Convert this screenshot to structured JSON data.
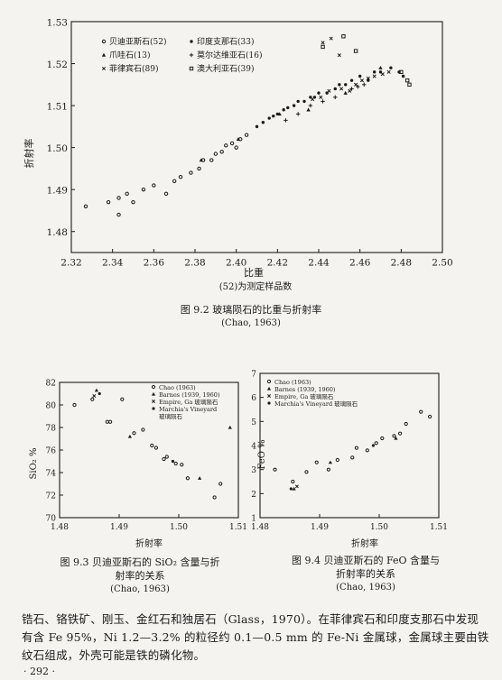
{
  "figure_9_2": {
    "caption": "图 9.2  玻璃陨石的比重与折射率",
    "source": "(Chao, 1963)",
    "xlabel": "比重",
    "xlabel_note": "(52)为测定样品数",
    "ylabel": "折射率",
    "legend": [
      {
        "marker": "circle",
        "label": "贝迪亚斯石(52)"
      },
      {
        "marker": "dot",
        "label": "印度支那石(33)"
      },
      {
        "marker": "triangle",
        "label": "爪哇石(13)"
      },
      {
        "marker": "plus",
        "label": "莫尔达维亚石(16)"
      },
      {
        "marker": "x",
        "label": "菲律宾石(89)"
      },
      {
        "marker": "square",
        "label": "澳大利亚石(39)"
      }
    ]
  },
  "figure_9_3": {
    "caption_line1": "图 9.3  贝迪亚斯石的 SiO₂ 含量与折",
    "caption_line2": "射率的关系",
    "source": "(Chao, 1963)",
    "xlabel": "折射率",
    "ylabel": "SiO₂ %",
    "legend": [
      {
        "marker": "circle",
        "label": "Chao (1963)"
      },
      {
        "marker": "triangle",
        "label": "Barnes (1939, 1960)"
      },
      {
        "marker": "x",
        "label": "Empire, Ga 玻璃陨石"
      },
      {
        "marker": "dot",
        "label": "Marchia's Vineyard"
      },
      {
        "marker": "none",
        "label": "玻璃陨石"
      }
    ]
  },
  "figure_9_4": {
    "caption_line1": "图 9.4  贝迪亚斯石的 FeO 含量与",
    "caption_line2": "折射率的关系",
    "source": "(Chao, 1963)",
    "xlabel": "折射率",
    "ylabel": "FeO %",
    "legend": [
      {
        "marker": "circle",
        "label": "Chao (1963)"
      },
      {
        "marker": "triangle",
        "label": "Barnes (1939, 1960)"
      },
      {
        "marker": "x",
        "label": "Empire, Ga 玻璃陨石"
      },
      {
        "marker": "dot",
        "label": "Marchia's Vineyard 玻璃陨石"
      }
    ]
  },
  "body_text": {
    "line1": "锆石、铬铁矿、刚玉、金红石和独居石（Glass，1970）。在菲律宾石和印度支那石中发现",
    "line2": "有含 Fe 95%，Ni 1.2—3.2% 的粒径约 0.1—0.5 mm 的 Fe-Ni 金属球，金属球主要由铁",
    "line3": "纹石组成，外壳可能是铁的磷化物。"
  },
  "page_number": "· 292 ·",
  "chart_data": [
    {
      "type": "scatter",
      "title": "",
      "xlabel": "比重",
      "ylabel": "折射率",
      "xlim": [
        2.32,
        2.5
      ],
      "ylim": [
        1.475,
        1.53
      ],
      "xticks": [
        2.32,
        2.34,
        2.36,
        2.38,
        2.4,
        2.42,
        2.44,
        2.46,
        2.48,
        2.5
      ],
      "xtick_labels": [
        "2.32",
        "2.34",
        "2.36",
        "2.38",
        "2.40",
        "2.42",
        "2.44",
        "2.46",
        "2.48",
        "2.50"
      ],
      "yticks": [
        1.48,
        1.49,
        1.5,
        1.51,
        1.52,
        1.53
      ],
      "ytick_labels": [
        "1.48",
        "1.49",
        "1.50",
        "1.51",
        "1.52",
        "1.53"
      ],
      "series": [
        {
          "name": "贝迪亚斯石(52)",
          "marker": "circle",
          "points": [
            [
              2.327,
              1.486
            ],
            [
              2.338,
              1.487
            ],
            [
              2.343,
              1.488
            ],
            [
              2.347,
              1.489
            ],
            [
              2.35,
              1.487
            ],
            [
              2.355,
              1.49
            ],
            [
              2.36,
              1.491
            ],
            [
              2.366,
              1.489
            ],
            [
              2.37,
              1.492
            ],
            [
              2.373,
              1.493
            ],
            [
              2.378,
              1.494
            ],
            [
              2.382,
              1.495
            ],
            [
              2.384,
              1.497
            ],
            [
              2.388,
              1.497
            ],
            [
              2.39,
              1.4985
            ],
            [
              2.393,
              1.499
            ],
            [
              2.395,
              1.5005
            ],
            [
              2.398,
              1.501
            ],
            [
              2.4,
              1.5
            ],
            [
              2.402,
              1.502
            ],
            [
              2.405,
              1.503
            ],
            [
              2.343,
              1.484
            ]
          ]
        },
        {
          "name": "印度支那石(33)",
          "marker": "dot",
          "points": [
            [
              2.41,
              1.505
            ],
            [
              2.413,
              1.506
            ],
            [
              2.416,
              1.507
            ],
            [
              2.418,
              1.5075
            ],
            [
              2.42,
              1.508
            ],
            [
              2.423,
              1.509
            ],
            [
              2.425,
              1.5095
            ],
            [
              2.428,
              1.51
            ],
            [
              2.43,
              1.511
            ],
            [
              2.433,
              1.511
            ],
            [
              2.436,
              1.512
            ],
            [
              2.438,
              1.512
            ],
            [
              2.44,
              1.513
            ],
            [
              2.444,
              1.513
            ],
            [
              2.448,
              1.514
            ],
            [
              2.45,
              1.515
            ],
            [
              2.453,
              1.515
            ],
            [
              2.456,
              1.516
            ],
            [
              2.46,
              1.517
            ],
            [
              2.464,
              1.516
            ],
            [
              2.467,
              1.518
            ],
            [
              2.47,
              1.518
            ],
            [
              2.475,
              1.519
            ],
            [
              2.479,
              1.518
            ],
            [
              2.481,
              1.517
            ]
          ]
        },
        {
          "name": "爪哇石(13)",
          "marker": "triangle",
          "points": [
            [
              2.383,
              1.497
            ],
            [
              2.401,
              1.502
            ],
            [
              2.421,
              1.508
            ],
            [
              2.435,
              1.509
            ],
            [
              2.453,
              1.513
            ],
            [
              2.47,
              1.519
            ]
          ]
        },
        {
          "name": "莫尔达维亚石(16)",
          "marker": "plus",
          "points": [
            [
              2.424,
              1.5065
            ],
            [
              2.43,
              1.508
            ],
            [
              2.436,
              1.51
            ],
            [
              2.442,
              1.511
            ],
            [
              2.448,
              1.512
            ],
            [
              2.456,
              1.514
            ],
            [
              2.459,
              1.5145
            ],
            [
              2.462,
              1.515
            ]
          ]
        },
        {
          "name": "菲律宾石(89)",
          "marker": "x",
          "points": [
            [
              2.437,
              1.5115
            ],
            [
              2.441,
              1.512
            ],
            [
              2.445,
              1.5135
            ],
            [
              2.451,
              1.514
            ],
            [
              2.455,
              1.5135
            ],
            [
              2.458,
              1.515
            ],
            [
              2.461,
              1.516
            ],
            [
              2.464,
              1.5165
            ],
            [
              2.467,
              1.517
            ],
            [
              2.471,
              1.5175
            ],
            [
              2.474,
              1.518
            ],
            [
              2.442,
              1.525
            ],
            [
              2.446,
              1.526
            ],
            [
              2.45,
              1.522
            ]
          ]
        },
        {
          "name": "澳大利亚石(39)",
          "marker": "square",
          "points": [
            [
              2.442,
              1.524
            ],
            [
              2.452,
              1.5265
            ],
            [
              2.458,
              1.523
            ],
            [
              2.48,
              1.518
            ],
            [
              2.483,
              1.516
            ],
            [
              2.484,
              1.515
            ]
          ]
        }
      ]
    },
    {
      "type": "scatter",
      "title": "",
      "xlabel": "折射率",
      "ylabel": "SiO₂ %",
      "xlim": [
        1.48,
        1.51
      ],
      "ylim": [
        70,
        82
      ],
      "xticks": [
        1.48,
        1.49,
        1.5,
        1.51
      ],
      "xtick_labels": [
        "1.48",
        "1.49",
        "1.50",
        "1.51"
      ],
      "yticks": [
        70,
        72,
        74,
        76,
        78,
        80,
        82
      ],
      "ytick_labels": [
        "70",
        "72",
        "74",
        "76",
        "78",
        "80",
        "82"
      ],
      "series": [
        {
          "name": "Chao (1963)",
          "marker": "circle",
          "points": [
            [
              1.4825,
              80.0
            ],
            [
              1.4855,
              80.5
            ],
            [
              1.488,
              78.5
            ],
            [
              1.4885,
              78.5
            ],
            [
              1.4905,
              80.5
            ],
            [
              1.4925,
              77.5
            ],
            [
              1.494,
              77.8
            ],
            [
              1.4955,
              76.4
            ],
            [
              1.4962,
              76.2
            ],
            [
              1.4975,
              75.2
            ],
            [
              1.498,
              75.4
            ],
            [
              1.4995,
              74.8
            ],
            [
              1.5005,
              74.7
            ],
            [
              1.5015,
              73.5
            ],
            [
              1.506,
              71.8
            ],
            [
              1.507,
              73.0
            ]
          ]
        },
        {
          "name": "Barnes (1939, 1960)",
          "marker": "triangle",
          "points": [
            [
              1.4862,
              81.3
            ],
            [
              1.4918,
              77.2
            ],
            [
              1.5035,
              73.5
            ],
            [
              1.5086,
              78.0
            ]
          ]
        },
        {
          "name": "Empire, Ga 玻璃陨石",
          "marker": "x",
          "points": [
            [
              1.4858,
              80.8
            ]
          ]
        },
        {
          "name": "Marchia's Vineyard",
          "marker": "dot",
          "points": [
            [
              1.4867,
              81.0
            ],
            [
              1.499,
              75.0
            ]
          ]
        }
      ]
    },
    {
      "type": "scatter",
      "title": "",
      "xlabel": "折射率",
      "ylabel": "FeO %",
      "xlim": [
        1.48,
        1.51
      ],
      "ylim": [
        1,
        7
      ],
      "xticks": [
        1.48,
        1.49,
        1.5,
        1.51
      ],
      "xtick_labels": [
        "1.48",
        "1.49",
        "1.50",
        "1.51"
      ],
      "yticks": [
        1,
        2,
        3,
        4,
        5,
        6,
        7
      ],
      "ytick_labels": [
        "1",
        "2",
        "3",
        "4",
        "5",
        "6",
        "7"
      ],
      "series": [
        {
          "name": "Chao (1963)",
          "marker": "circle",
          "points": [
            [
              1.4825,
              3.0
            ],
            [
              1.4855,
              2.5
            ],
            [
              1.4878,
              2.9
            ],
            [
              1.4895,
              3.3
            ],
            [
              1.4915,
              3.0
            ],
            [
              1.493,
              3.4
            ],
            [
              1.4955,
              3.5
            ],
            [
              1.4962,
              3.9
            ],
            [
              1.498,
              3.8
            ],
            [
              1.4995,
              4.1
            ],
            [
              1.5005,
              4.3
            ],
            [
              1.5025,
              4.4
            ],
            [
              1.5035,
              4.5
            ],
            [
              1.5045,
              4.9
            ],
            [
              1.507,
              5.4
            ],
            [
              1.5085,
              5.2
            ]
          ]
        },
        {
          "name": "Barnes (1939, 1960)",
          "marker": "triangle",
          "points": [
            [
              1.4857,
              2.2
            ],
            [
              1.4918,
              3.3
            ],
            [
              1.5028,
              4.3
            ]
          ]
        },
        {
          "name": "Empire, Ga 玻璃陨石",
          "marker": "x",
          "points": [
            [
              1.4862,
              2.3
            ]
          ]
        },
        {
          "name": "Marchia's Vineyard 玻璃陨石",
          "marker": "dot",
          "points": [
            [
              1.4852,
              2.2
            ],
            [
              1.499,
              4.0
            ]
          ]
        }
      ]
    }
  ]
}
